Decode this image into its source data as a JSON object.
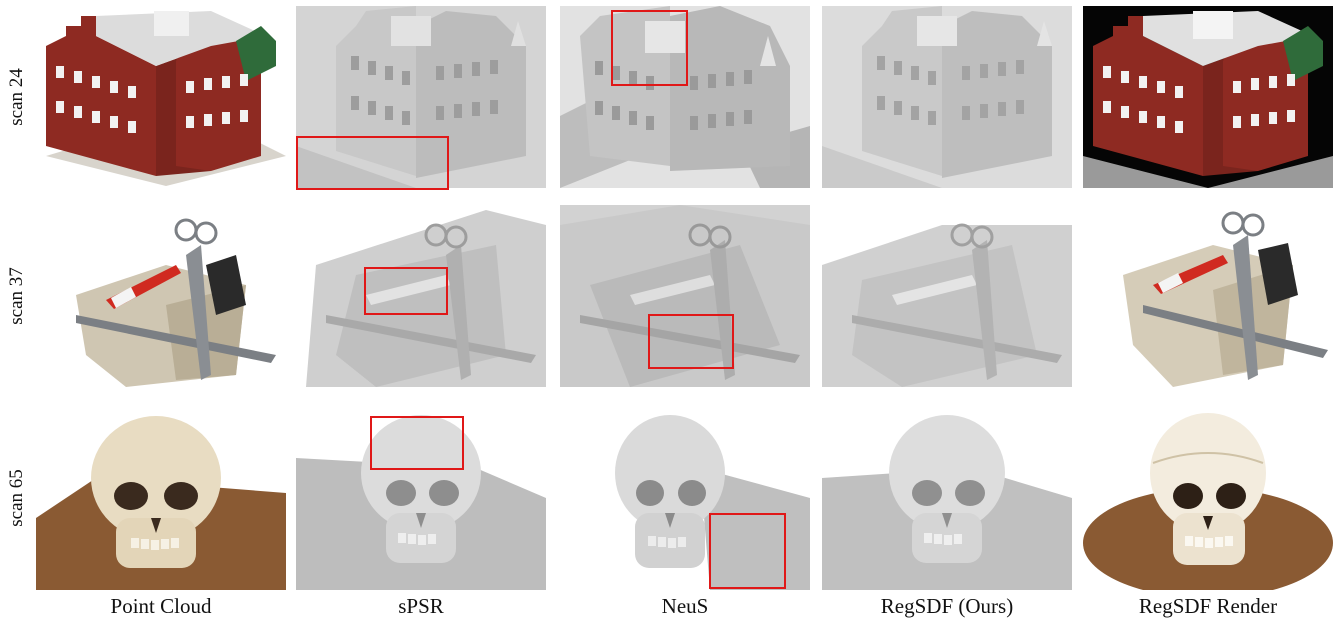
{
  "figure": {
    "rows": [
      {
        "label": "scan 24",
        "subject": "building"
      },
      {
        "label": "scan 37",
        "subject": "tools"
      },
      {
        "label": "scan 65",
        "subject": "skull"
      }
    ],
    "columns": [
      {
        "label": "Point Cloud",
        "style": "color"
      },
      {
        "label": "sPSR",
        "style": "mesh"
      },
      {
        "label": "NeuS",
        "style": "mesh"
      },
      {
        "label": "RegSDF (Ours)",
        "style": "mesh"
      },
      {
        "label": "RegSDF Render",
        "style": "color"
      }
    ],
    "highlight_color": "#e01818",
    "colors": {
      "brick": "#8e2a22",
      "roof": "#e6e6e6",
      "window": "#f2f2f2",
      "copper": "#2f6b3a",
      "stone": "#cfc6b2",
      "handle": "#d02a20",
      "metal": "#7b7f84",
      "bone": "#e8dcc2",
      "table": "#8a5a33",
      "mesh_light": "#d7d7d7",
      "mesh_mid": "#bdbdbd",
      "mesh_dark": "#9d9d9d"
    }
  }
}
